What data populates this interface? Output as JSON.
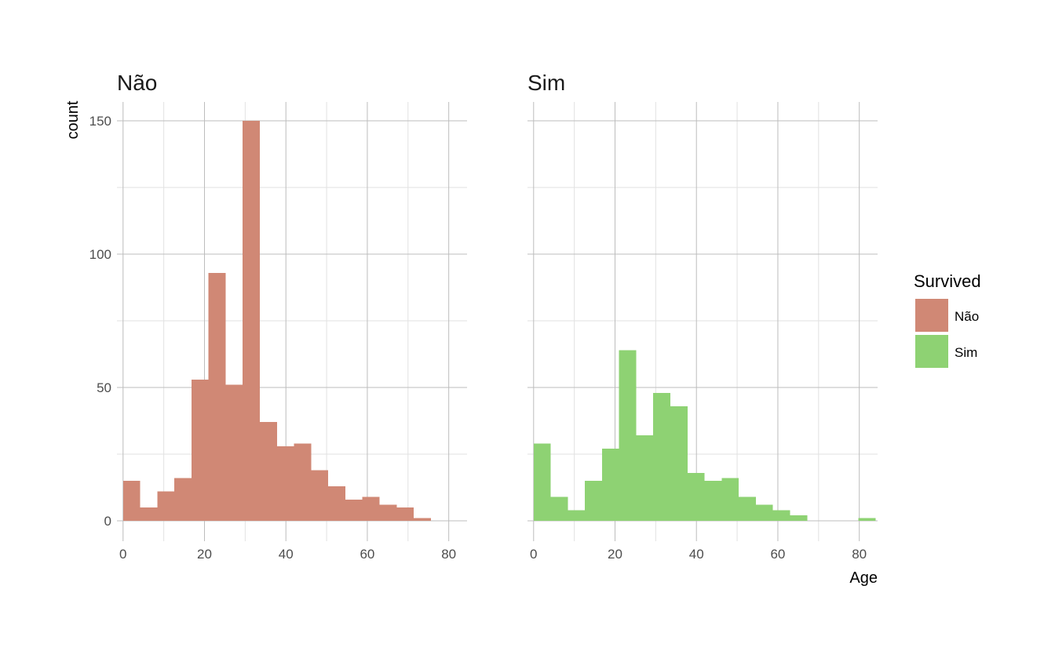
{
  "chart_data": {
    "type": "histogram",
    "bin_width": 4.2,
    "bin_starts": [
      0,
      4.2,
      8.4,
      12.6,
      16.8,
      21,
      25.2,
      29.4,
      33.6,
      37.8,
      42,
      46.2,
      50.4,
      54.6,
      58.8,
      63,
      67.2,
      71.4,
      75.6,
      79.8
    ],
    "xlabel": "Age",
    "ylabel": "count",
    "x_ticks": [
      0,
      20,
      40,
      60,
      80
    ],
    "y_ticks": [
      0,
      50,
      100,
      150
    ],
    "x_tick_labels": [
      "0",
      "20",
      "40",
      "60",
      "80"
    ],
    "y_tick_labels": [
      "0",
      "50",
      "100",
      "150"
    ],
    "xlim": [
      -1.5,
      84.5
    ],
    "ylim": [
      0,
      157
    ],
    "grid": true,
    "legend": {
      "title": "Survived",
      "placement": "right",
      "entries": [
        "Não",
        "Sim"
      ]
    },
    "panels": [
      {
        "title": "Não",
        "color": "#d08875",
        "counts": [
          15,
          5,
          11,
          16,
          53,
          93,
          51,
          150,
          37,
          28,
          29,
          19,
          13,
          8,
          9,
          6,
          5,
          1,
          0,
          0
        ]
      },
      {
        "title": "Sim",
        "color": "#8ed273",
        "counts": [
          29,
          9,
          4,
          15,
          27,
          64,
          32,
          48,
          43,
          18,
          15,
          16,
          9,
          6,
          4,
          2,
          0,
          0,
          0,
          1
        ]
      }
    ]
  }
}
